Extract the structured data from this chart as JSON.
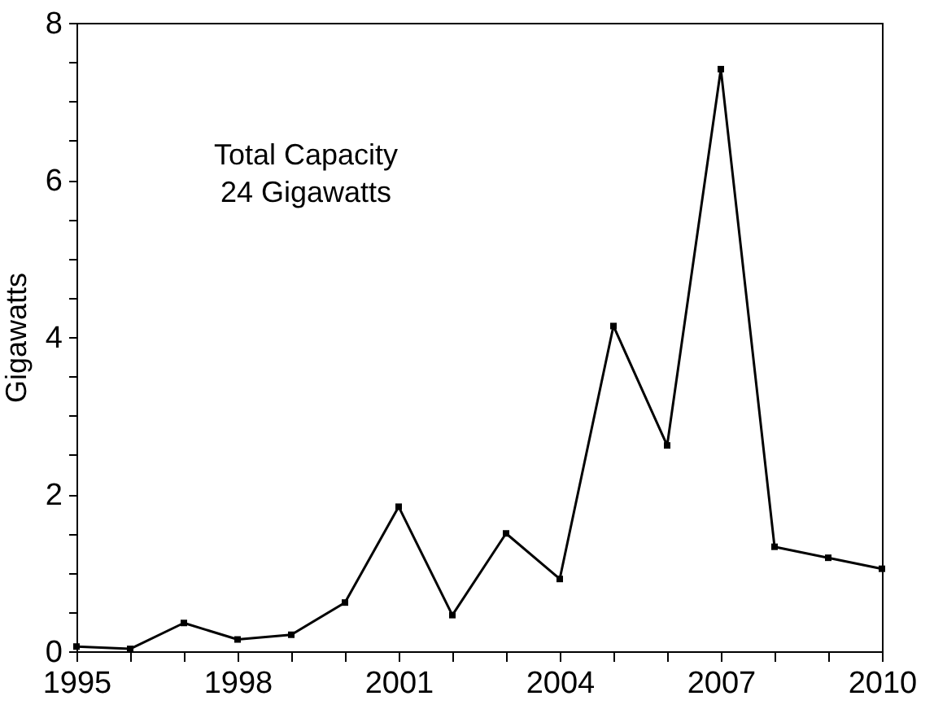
{
  "chart_data": {
    "type": "line",
    "ylabel": "Gigawatts",
    "annotations": [
      "Total Capacity",
      "24 Gigawatts"
    ],
    "x": [
      1995,
      1996,
      1997,
      1998,
      1999,
      2000,
      2001,
      2002,
      2003,
      2004,
      2005,
      2006,
      2007,
      2008,
      2009,
      2010
    ],
    "series": [
      {
        "color": "#000000",
        "values": [
          0.06,
          0.03,
          0.36,
          0.15,
          0.21,
          0.62,
          1.84,
          0.46,
          1.5,
          0.92,
          4.14,
          2.62,
          7.41,
          1.33,
          1.19,
          1.05
        ]
      }
    ],
    "xlim": [
      1995,
      2010
    ],
    "xticks": [
      1995,
      {
        "value": 1996,
        "label": null
      },
      {
        "value": 1997,
        "label": null
      },
      1998,
      {
        "value": 1999,
        "label": null
      },
      {
        "value": 2000,
        "label": null
      },
      2001,
      {
        "value": 2002,
        "label": null
      },
      {
        "value": 2003,
        "label": null
      },
      2004,
      {
        "value": 2005,
        "label": null
      },
      {
        "value": 2006,
        "label": null
      },
      2007,
      {
        "value": 2008,
        "label": null
      },
      {
        "value": 2009,
        "label": null
      },
      2010
    ],
    "ylim": [
      0,
      8
    ],
    "yticks": [
      0,
      {
        "value": 0.5,
        "label": null
      },
      {
        "value": 1,
        "label": null
      },
      {
        "value": 1.5,
        "label": null
      },
      2,
      {
        "value": 2.5,
        "label": null
      },
      {
        "value": 3,
        "label": null
      },
      {
        "value": 3.5,
        "label": null
      },
      4,
      {
        "value": 4.5,
        "label": null
      },
      {
        "value": 5,
        "label": null
      },
      {
        "value": 5.5,
        "label": null
      },
      6,
      {
        "value": 6.5,
        "label": null
      },
      {
        "value": 7,
        "label": null
      },
      {
        "value": 7.5,
        "label": null
      },
      8
    ],
    "grid": false,
    "marker": "square",
    "line_style": "solid"
  }
}
